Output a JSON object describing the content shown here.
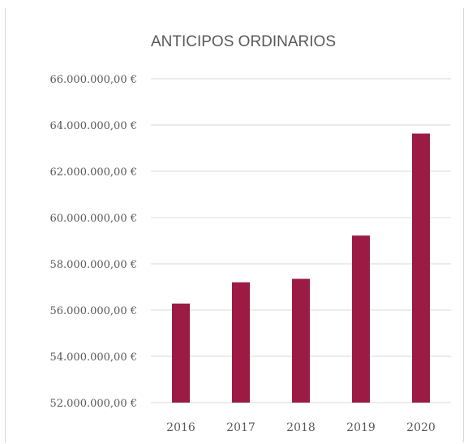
{
  "chart_data": {
    "type": "bar",
    "title": "ANTICIPOS ORDINARIOS",
    "categories": [
      "2016",
      "2017",
      "2018",
      "2019",
      "2020"
    ],
    "values": [
      56280000,
      57200000,
      57350000,
      59220000,
      63630000
    ],
    "ylim": [
      52000000,
      66000000
    ],
    "yticks": [
      52000000,
      54000000,
      56000000,
      58000000,
      60000000,
      62000000,
      64000000,
      66000000
    ],
    "ytick_labels": [
      "52.000.000,00 €",
      "54.000.000,00 €",
      "56.000.000,00 €",
      "58.000.000,00 €",
      "60.000.000,00 €",
      "62.000.000,00 €",
      "64.000.000,00 €",
      "66.000.000,00 €"
    ],
    "xlabel": "",
    "ylabel": "",
    "grid": true,
    "legend": "none",
    "colors": {
      "bar": "#9b1b45",
      "grid": "#d9d9d9",
      "text": "#595959",
      "title": "#595959"
    }
  }
}
